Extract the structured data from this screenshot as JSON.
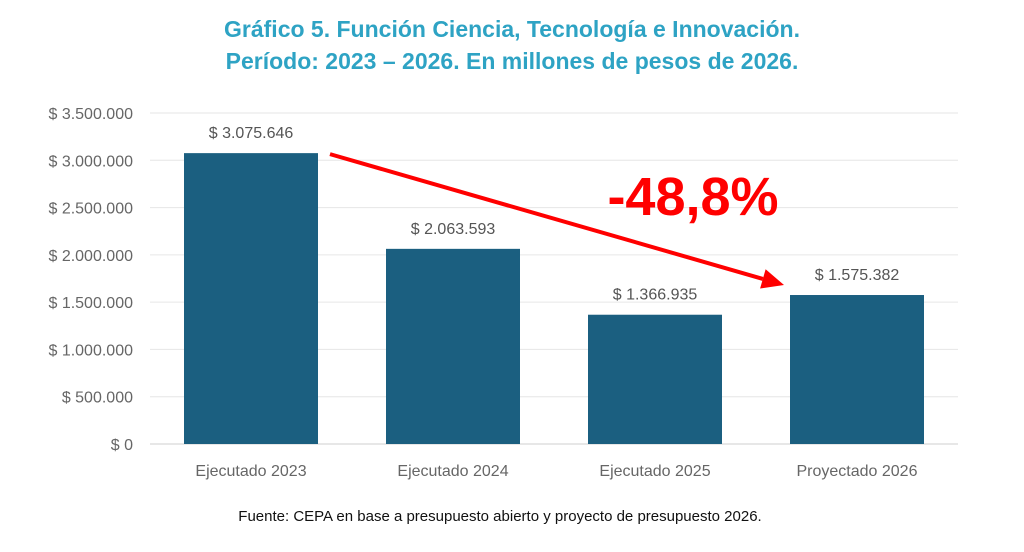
{
  "title_line1": "Gráfico 5. Función Ciencia, Tecnología e Innovación.",
  "title_line2": "Período: 2023 – 2026. En millones de pesos de 2026.",
  "source": "Fuente: CEPA en base a presupuesto abierto y proyecto de presupuesto 2026.",
  "colors": {
    "bar": "#1b5f80",
    "title": "#2ea3c4",
    "arrow": "#ff0000",
    "grid": "#e6e6e6",
    "axis_text": "#666666"
  },
  "chart_data": {
    "type": "bar",
    "title": "Gráfico 5. Función Ciencia, Tecnología e Innovación. Período: 2023 – 2026. En millones de pesos de 2026.",
    "categories": [
      "Ejecutado 2023",
      "Ejecutado 2024",
      "Ejecutado 2025",
      "Proyectado 2026"
    ],
    "values": [
      3075646,
      2063593,
      1366935,
      1575382
    ],
    "data_labels": [
      "$ 3.075.646",
      "$ 2.063.593",
      "$ 1.366.935",
      "$ 1.575.382"
    ],
    "y_ticks": [
      0,
      500000,
      1000000,
      1500000,
      2000000,
      2500000,
      3000000,
      3500000
    ],
    "y_tick_labels": [
      "$ 0",
      "$ 500.000",
      "$ 1.000.000",
      "$ 1.500.000",
      "$ 2.000.000",
      "$ 2.500.000",
      "$ 3.000.000",
      "$ 3.500.000"
    ],
    "ylim": [
      0,
      3500000
    ],
    "xlabel": "",
    "ylabel": "",
    "grid": true,
    "legend": "none",
    "annotation": {
      "text": "-48,8%",
      "from_category": "Ejecutado 2023",
      "to_category": "Proyectado 2026"
    }
  }
}
